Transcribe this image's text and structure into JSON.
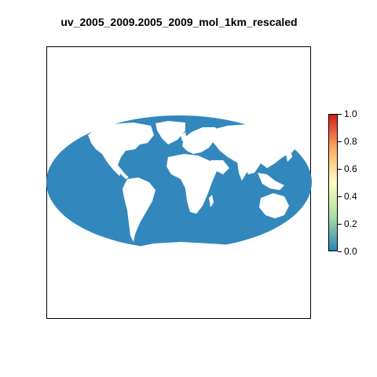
{
  "title": "uv_2005_2009.2005_2009_mol_1km_rescaled",
  "map": {
    "projection": "mollweide",
    "ocean_color": "#3288BD",
    "land_color": "#FFFFFF"
  },
  "legend": {
    "min": 0.0,
    "max": 1.0,
    "tick_labels": [
      "0.0",
      "0.2",
      "0.4",
      "0.6",
      "0.8",
      "1.0"
    ],
    "colors": [
      "#2B83BA",
      "#ABDDA4",
      "#FFFFBF",
      "#FDAE61",
      "#D7191C"
    ]
  }
}
